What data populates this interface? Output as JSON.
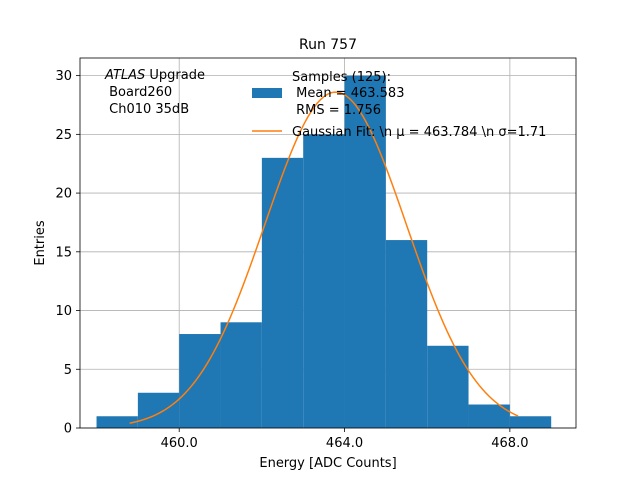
{
  "chart_data": {
    "type": "bar",
    "title": "Run 757",
    "xlabel": "Energy [ADC Counts]",
    "ylabel": "Entries",
    "xlim": [
      457.6,
      469.6
    ],
    "ylim": [
      0,
      31.5
    ],
    "grid": true,
    "x_ticks": [
      460.0,
      464.0,
      468.0
    ],
    "x_tick_labels": [
      "460.0",
      "464.0",
      "468.0"
    ],
    "y_ticks": [
      0,
      5,
      10,
      15,
      20,
      25,
      30
    ],
    "y_tick_labels": [
      "0",
      "5",
      "10",
      "15",
      "20",
      "25",
      "30"
    ],
    "annotation": {
      "italic": "ATLAS",
      "rest": " Upgrade",
      "line2": " Board260",
      "line3": " Ch010 35dB"
    },
    "histogram": {
      "bin_edges": [
        458,
        459,
        460,
        461,
        462,
        463,
        464,
        465,
        466,
        467,
        468,
        469
      ],
      "counts": [
        1,
        3,
        8,
        9,
        23,
        25,
        30,
        16,
        7,
        2,
        1
      ],
      "color": "#1f77b4"
    },
    "fit": {
      "type": "gaussian",
      "amplitude": 28.6,
      "mu": 463.784,
      "sigma": 1.71,
      "x_range": [
        458.8,
        468.2
      ],
      "color": "#ff7f0e"
    },
    "legend": {
      "placement": "top-right",
      "hist_lines": [
        "Samples (125):",
        " Mean = 463.583",
        " RMS = 1.756"
      ],
      "fit_label": "Gaussian Fit: \\n μ = 463.784 \\n σ=1.71"
    }
  }
}
